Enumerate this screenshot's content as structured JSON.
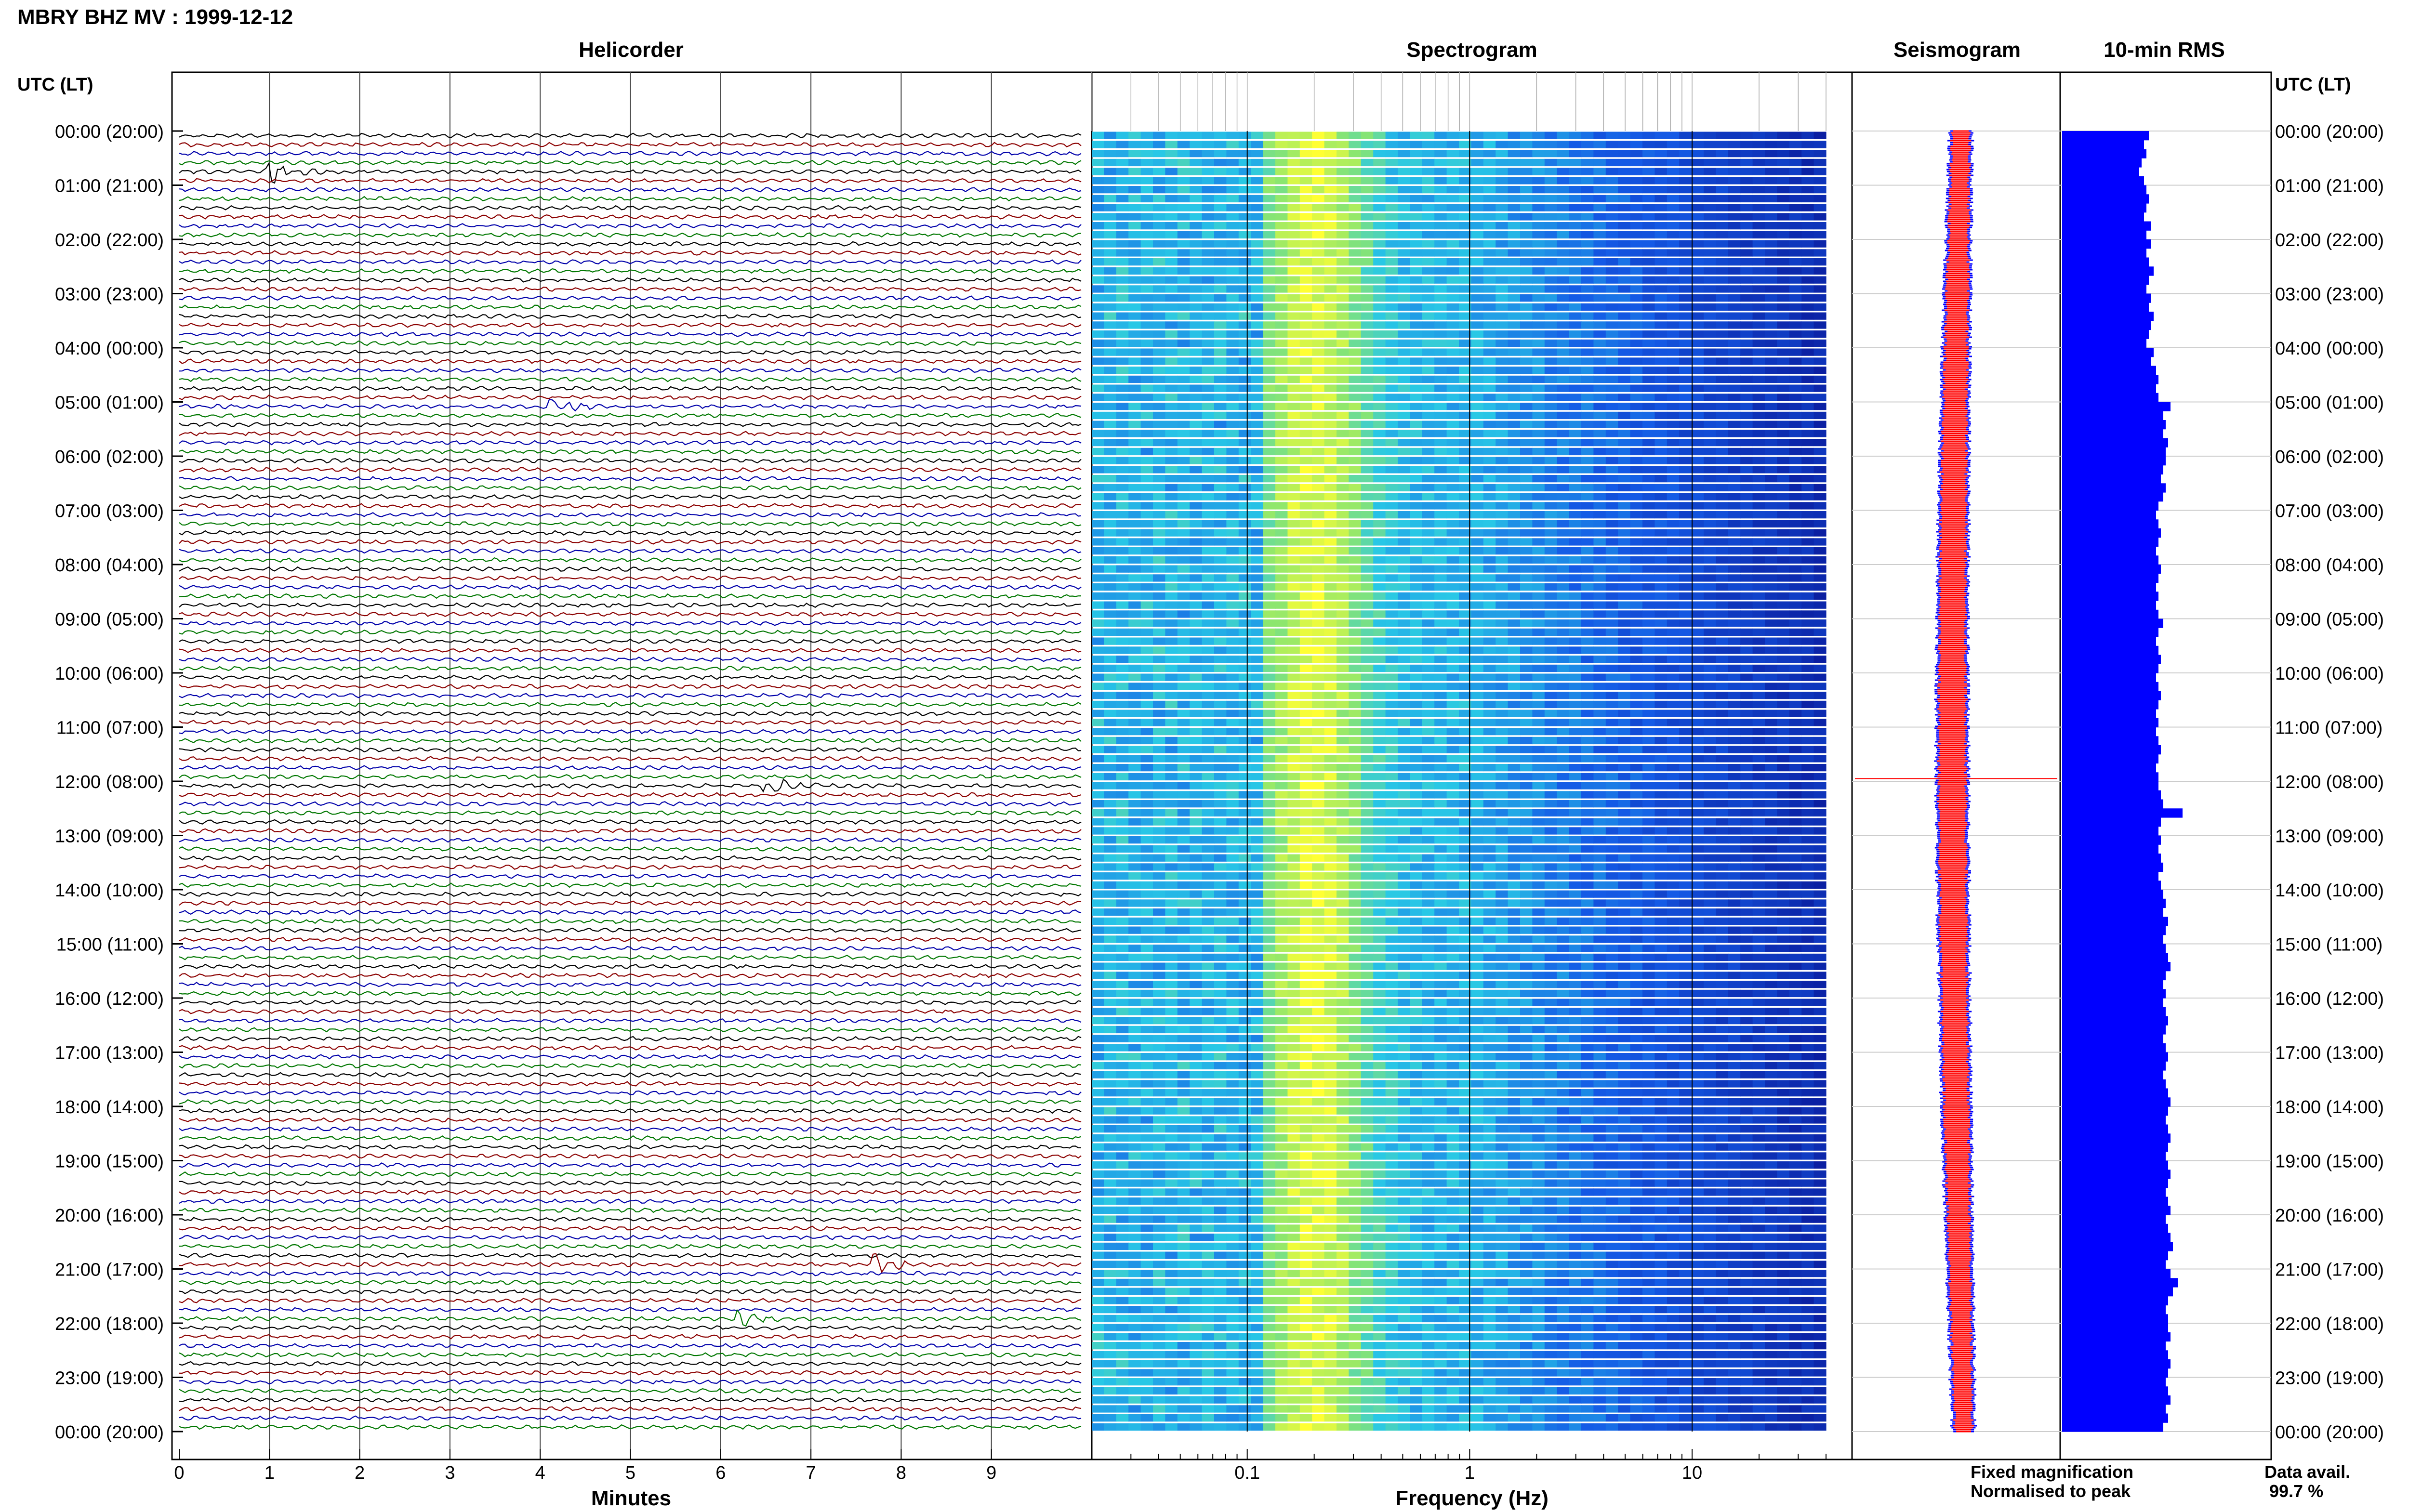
{
  "header": {
    "title": "MBRY BHZ MV : 1999-12-12"
  },
  "panels": {
    "helicorder": "Helicorder",
    "spectrogram": "Spectrogram",
    "seismogram": "Seismogram",
    "rms": "10-min RMS"
  },
  "axes": {
    "left_label": "UTC (LT)",
    "right_label": "UTC (LT)",
    "minutes_label": "Minutes",
    "frequency_label": "Frequency (Hz)"
  },
  "legend": {
    "fixed": "Fixed magnification",
    "normalised": "Normalised to peak",
    "fixed_color": "#0000ff",
    "normalised_color": "#ff0000"
  },
  "data_avail": {
    "label": "Data avail.",
    "value": "99.7 %"
  },
  "colors": {
    "trace_cycle": [
      "#000000",
      "#8b0000",
      "#0000aa",
      "#007700"
    ],
    "rms_bar": "#0000ff",
    "spectrogram_low": "#0a1a9c",
    "spectrogram_high": "#ffff33"
  },
  "chart_data": {
    "type": "heatmap",
    "time_labels": [
      "00:00 (20:00)",
      "01:00 (21:00)",
      "02:00 (22:00)",
      "03:00 (23:00)",
      "04:00 (00:00)",
      "05:00 (01:00)",
      "06:00 (02:00)",
      "07:00 (03:00)",
      "08:00 (04:00)",
      "09:00 (05:00)",
      "10:00 (06:00)",
      "11:00 (07:00)",
      "12:00 (08:00)",
      "13:00 (09:00)",
      "14:00 (10:00)",
      "15:00 (11:00)",
      "16:00 (12:00)",
      "17:00 (13:00)",
      "18:00 (14:00)",
      "19:00 (15:00)",
      "20:00 (16:00)",
      "21:00 (17:00)",
      "22:00 (18:00)",
      "23:00 (19:00)",
      "00:00 (20:00)"
    ],
    "minutes_ticks": [
      "0",
      "1",
      "2",
      "3",
      "4",
      "5",
      "6",
      "7",
      "8",
      "9"
    ],
    "frequency_ticks": [
      "0.1",
      "1",
      "10"
    ],
    "frequency_range_hz": [
      0.02,
      40
    ],
    "frequency_scale": "log",
    "rows_per_hour": 6,
    "rms_relative": [
      0.72,
      0.68,
      0.7,
      0.66,
      0.64,
      0.68,
      0.7,
      0.72,
      0.7,
      0.68,
      0.74,
      0.7,
      0.74,
      0.7,
      0.72,
      0.76,
      0.72,
      0.7,
      0.74,
      0.72,
      0.76,
      0.74,
      0.72,
      0.7,
      0.76,
      0.74,
      0.78,
      0.8,
      0.78,
      0.8,
      0.9,
      0.84,
      0.86,
      0.84,
      0.88,
      0.86,
      0.86,
      0.84,
      0.82,
      0.86,
      0.84,
      0.8,
      0.78,
      0.8,
      0.82,
      0.8,
      0.78,
      0.8,
      0.82,
      0.8,
      0.78,
      0.8,
      0.78,
      0.8,
      0.84,
      0.8,
      0.78,
      0.8,
      0.82,
      0.8,
      0.78,
      0.8,
      0.82,
      0.8,
      0.78,
      0.8,
      0.78,
      0.8,
      0.82,
      0.8,
      0.78,
      0.8,
      0.8,
      0.82,
      0.84,
      1.0,
      0.82,
      0.8,
      0.82,
      0.8,
      0.82,
      0.84,
      0.8,
      0.82,
      0.84,
      0.86,
      0.84,
      0.88,
      0.86,
      0.84,
      0.86,
      0.88,
      0.9,
      0.86,
      0.84,
      0.86,
      0.84,
      0.86,
      0.88,
      0.86,
      0.84,
      0.86,
      0.88,
      0.86,
      0.84,
      0.86,
      0.88,
      0.9,
      0.88,
      0.86,
      0.88,
      0.9,
      0.88,
      0.86,
      0.88,
      0.9,
      0.88,
      0.86,
      0.88,
      0.9,
      0.86,
      0.88,
      0.9,
      0.92,
      0.88,
      0.86,
      0.9,
      0.96,
      0.92,
      0.88,
      0.86,
      0.88,
      0.88,
      0.9,
      0.86,
      0.88,
      0.9,
      0.88,
      0.86,
      0.88,
      0.9,
      0.86,
      0.88,
      0.84
    ],
    "events": [
      {
        "minute": 1.0,
        "hour_offset": 0.66
      },
      {
        "minute": 4.1,
        "hour_offset": 5.05
      },
      {
        "minute": 6.5,
        "hour_offset": 11.95
      },
      {
        "minute": 7.7,
        "hour_offset": 20.75
      },
      {
        "minute": 6.2,
        "hour_offset": 21.85
      }
    ]
  }
}
